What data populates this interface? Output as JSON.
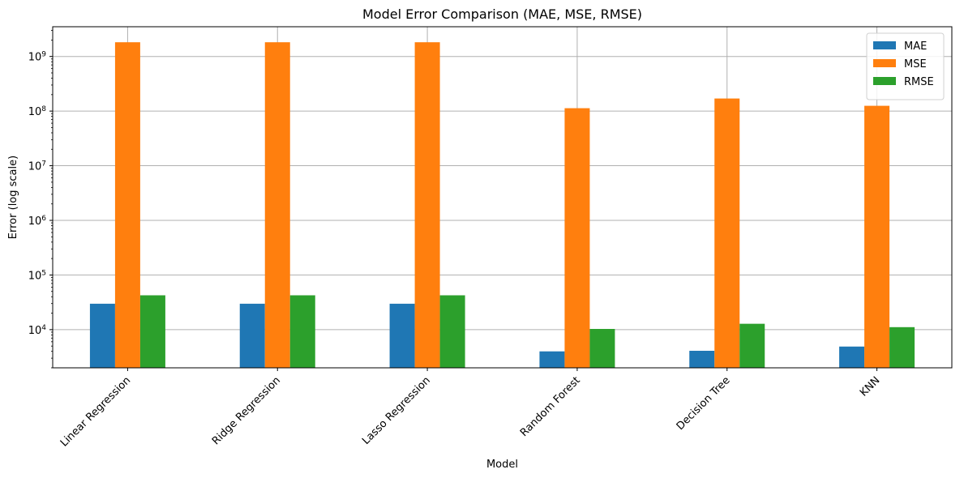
{
  "chart_data": {
    "type": "bar",
    "title": "Model Error Comparison (MAE, MSE, RMSE)",
    "xlabel": "Model",
    "ylabel": "Error (log scale)",
    "y_scale": "log",
    "ylim": [
      2000,
      3500000000
    ],
    "y_ticks": [
      {
        "value": 10000,
        "base": "10",
        "exp": "4"
      },
      {
        "value": 100000,
        "base": "10",
        "exp": "5"
      },
      {
        "value": 1000000,
        "base": "10",
        "exp": "6"
      },
      {
        "value": 10000000,
        "base": "10",
        "exp": "7"
      },
      {
        "value": 100000000,
        "base": "10",
        "exp": "8"
      },
      {
        "value": 1000000000,
        "base": "10",
        "exp": "9"
      }
    ],
    "grid": true,
    "legend_position": "top-right",
    "categories": [
      "Linear Regression",
      "Ridge Regression",
      "Lasso Regression",
      "Random Forest",
      "Decision Tree",
      "KNN"
    ],
    "series": [
      {
        "name": "MAE",
        "color": "#1f77b4",
        "values": [
          29800,
          29800,
          29800,
          4000,
          4100,
          4900
        ]
      },
      {
        "name": "MSE",
        "color": "#ff7f0e",
        "values": [
          1820000000,
          1820000000,
          1820000000,
          113000000,
          170000000,
          125000000
        ]
      },
      {
        "name": "RMSE",
        "color": "#2ca02c",
        "values": [
          42500,
          42500,
          42500,
          10300,
          12800,
          11100
        ]
      }
    ]
  }
}
